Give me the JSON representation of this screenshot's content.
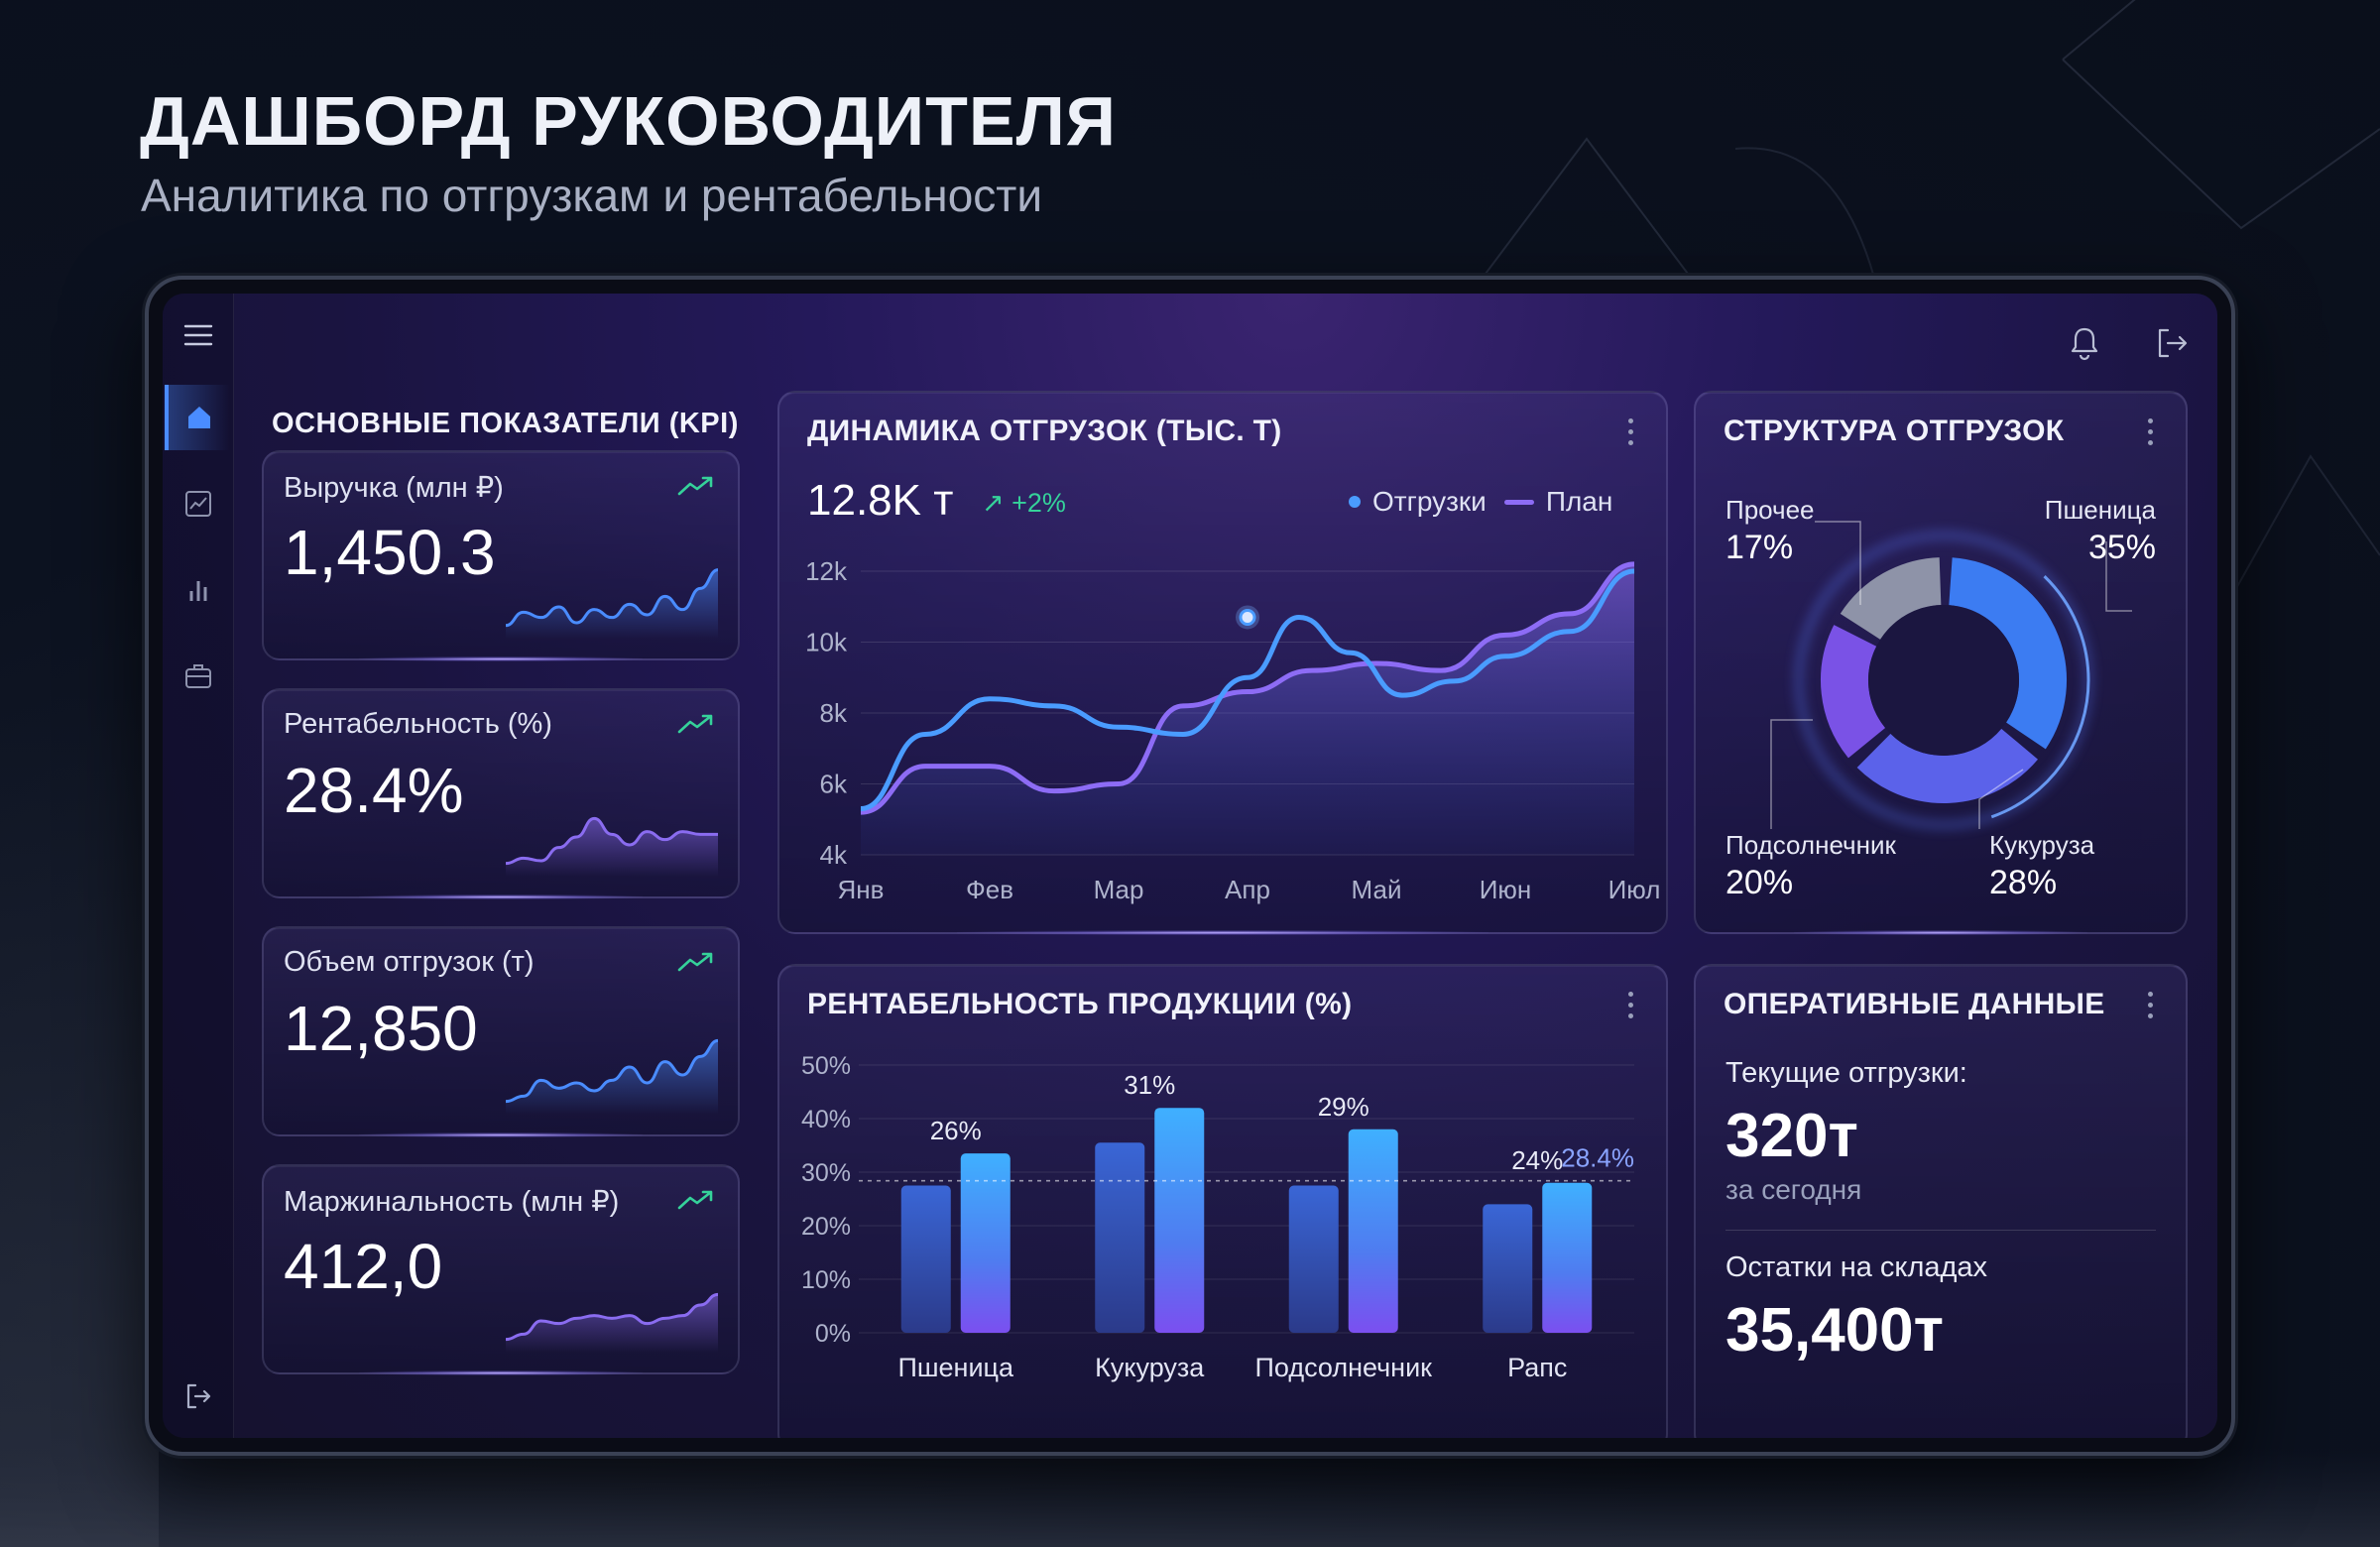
{
  "page": {
    "title": "ДАШБОРД РУКОВОДИТЕЛЯ",
    "subtitle": "Аналитика по отгрузкам и рентабельности"
  },
  "sidebar": {
    "items": [
      {
        "name": "sidebar-item-home",
        "icon": "home-icon",
        "active": true
      },
      {
        "name": "sidebar-item-analytics",
        "icon": "line-chart-icon",
        "active": false
      },
      {
        "name": "sidebar-item-reports",
        "icon": "bar-chart-icon",
        "active": false
      },
      {
        "name": "sidebar-item-portfolio",
        "icon": "briefcase-icon",
        "active": false
      }
    ],
    "bottom_icon": "logout-icon",
    "menu_icon": "hamburger-menu-icon"
  },
  "topbar": {
    "icons": [
      "bell-icon",
      "logout-icon"
    ]
  },
  "kpi": {
    "title": "ОСНОВНЫЕ ПОКАЗАТЕЛИ (KPI)",
    "cards": [
      {
        "label": "Выручка (млн ₽)",
        "value": "1,450.3",
        "trend_icon": "trend-up-icon",
        "color": "#4a8cff",
        "spark": [
          3,
          4,
          3.6,
          4.4,
          3.2,
          4.2,
          3.6,
          4.6,
          3.8,
          5.2,
          4.2,
          5.8,
          7.2
        ]
      },
      {
        "label": "Рентабельность (%)",
        "value": "28.4%",
        "trend_icon": "trend-up-icon",
        "color": "#8a6cf0",
        "spark": [
          3,
          3.4,
          3.2,
          4.2,
          5,
          6.4,
          5.2,
          4.4,
          5.4,
          4.8,
          5.4,
          5.2,
          5.2
        ]
      },
      {
        "label": "Объем отгрузок (т)",
        "value": "12,850",
        "trend_icon": "trend-up-icon",
        "color": "#4a8cff",
        "spark": [
          3,
          3.4,
          4.6,
          4,
          4.4,
          3.8,
          4.6,
          5.6,
          4.4,
          6,
          5,
          6.4,
          7.6
        ]
      },
      {
        "label": "Маржинальность (млн ₽)",
        "value": "412,0",
        "trend_icon": "trend-up-icon",
        "color": "#8a6cf0",
        "spark": [
          3,
          3.4,
          4.4,
          4.2,
          4.6,
          4.8,
          4.6,
          4.8,
          4.2,
          4.6,
          4.8,
          5.6,
          6.4
        ]
      }
    ]
  },
  "shipments": {
    "title": "ДИНАМИКА ОТГРУЗОК (ТЫС. Т)",
    "total": "12.8K т",
    "delta": "↗ +2%",
    "legend": [
      {
        "label": "Отгрузки",
        "color": "#4a9cff",
        "shape": "dot"
      },
      {
        "label": "План",
        "color": "#8d6cf5",
        "shape": "line"
      }
    ],
    "chart_data": {
      "type": "line",
      "categories": [
        "Янв",
        "Фев",
        "Мар",
        "Апр",
        "Май",
        "Июн",
        "Июл"
      ],
      "yticks": [
        "4k",
        "6k",
        "8k",
        "10k",
        "12k"
      ],
      "ylim": [
        4,
        12
      ],
      "series": [
        {
          "name": "Отгрузки",
          "color": "#4a9cff",
          "x": [
            0,
            0.5,
            1,
            1.5,
            2,
            2.5,
            3,
            3.4,
            3.8,
            4.2,
            4.6,
            5,
            5.5,
            6
          ],
          "y": [
            5.3,
            7.4,
            8.4,
            8.2,
            7.6,
            7.4,
            9,
            10.7,
            9.7,
            8.5,
            8.9,
            9.6,
            10.3,
            12
          ]
        },
        {
          "name": "План",
          "color": "#8d6cf5",
          "x": [
            0,
            0.5,
            1,
            1.5,
            2,
            2.5,
            3,
            3.5,
            4,
            4.5,
            5,
            5.5,
            6
          ],
          "y": [
            5.2,
            6.5,
            6.5,
            5.8,
            6,
            8.2,
            8.6,
            9.2,
            9.4,
            9.2,
            10.2,
            10.8,
            12.2
          ]
        }
      ],
      "highlight": {
        "series": "Отгрузки",
        "category": "Апр",
        "y": 10.7
      }
    }
  },
  "structure": {
    "title": "СТРУКТУРА ОТГРУЗОК",
    "chart_data": {
      "type": "pie",
      "labels": [
        "Пшеница",
        "Кукуруза",
        "Подсолнечник",
        "Прочее"
      ],
      "values": [
        35,
        28,
        20,
        17
      ],
      "display": [
        "35%",
        "28%",
        "20%",
        "17%"
      ],
      "colors": [
        "#3c7cf2",
        "#5b62ea",
        "#7a52e6",
        "#8e93a8"
      ]
    }
  },
  "profitability": {
    "title": "РЕНТАБЕЛЬНОСТЬ ПРОДУКЦИИ (%)",
    "chart_data": {
      "type": "bar",
      "categories": [
        "Пшеница",
        "Кукуруза",
        "Подсолнечник",
        "Рапс"
      ],
      "series": [
        {
          "values": [
            27.5,
            35.5,
            27.5,
            24
          ],
          "color": "#3b63c8"
        },
        {
          "values": [
            33.5,
            42,
            38,
            28
          ],
          "color": "#3fa3ff"
        }
      ],
      "labels": [
        "26%",
        "31%",
        "29%",
        "24%"
      ],
      "yticks": [
        "0%",
        "10%",
        "20%",
        "30%",
        "40%",
        "50%"
      ],
      "ylim": [
        0,
        50
      ],
      "reference": {
        "value": 28.4,
        "label": "28.4%"
      }
    }
  },
  "ops": {
    "title": "ОПЕРАТИВНЫЕ ДАННЫЕ",
    "current_label": "Текущие отгрузки:",
    "current_value": "320т",
    "current_sub": "за сегодня",
    "stock_label": "Остатки на складах",
    "stock_value": "35,400т"
  }
}
